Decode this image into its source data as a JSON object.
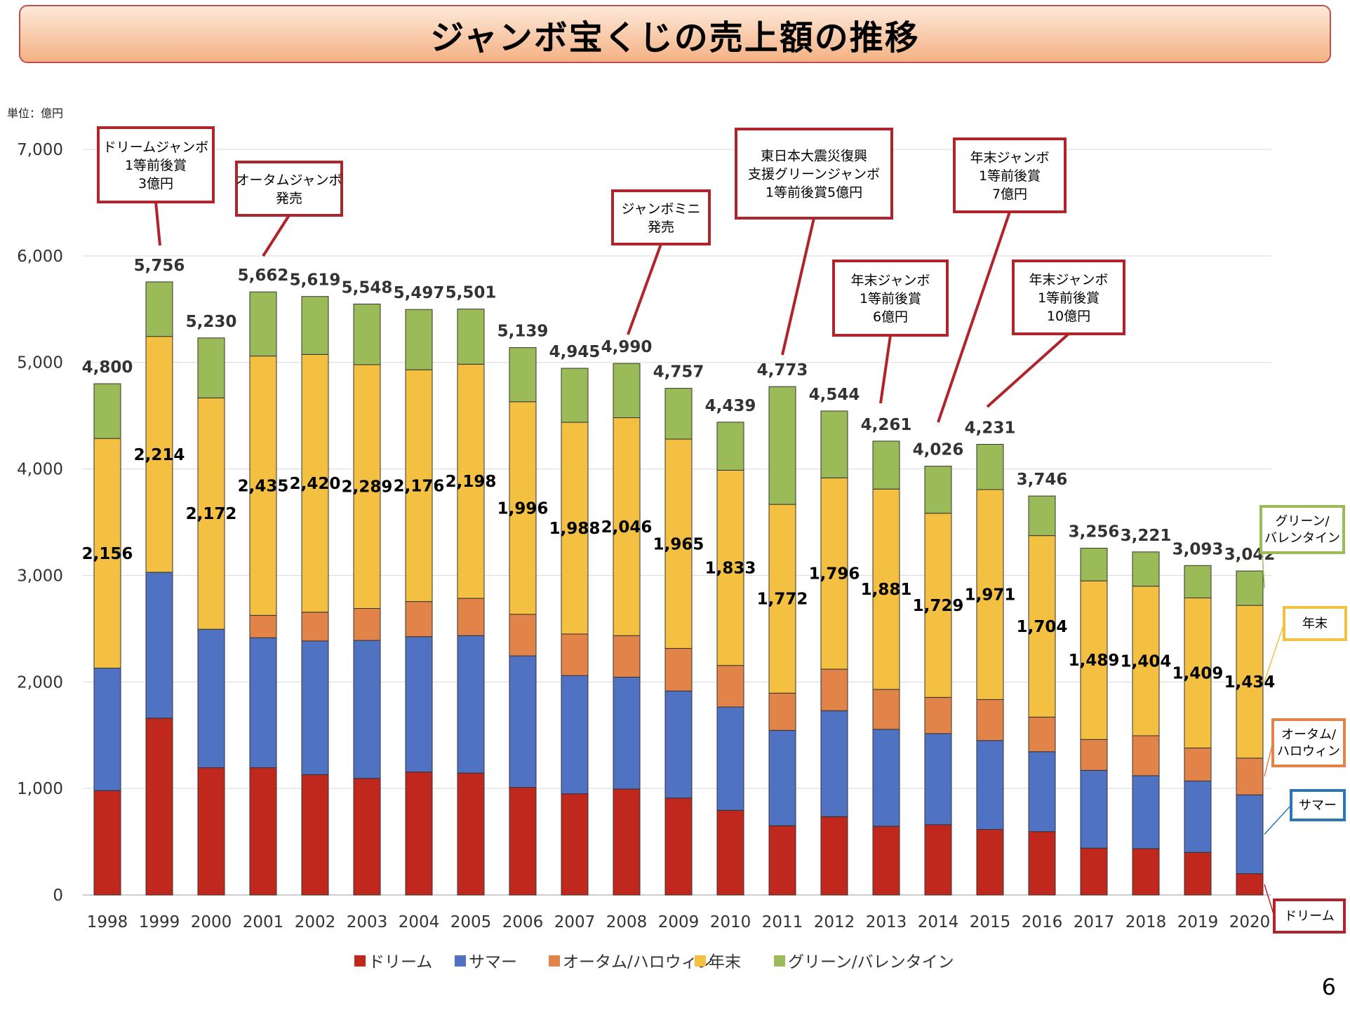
{
  "title": "ジャンボ宝くじの売上額の推移",
  "unit": "単位：億円",
  "page_number": "6",
  "chart_data": {
    "type": "bar",
    "stacked": true,
    "categories": [
      "1998",
      "1999",
      "2000",
      "2001",
      "2002",
      "2003",
      "2004",
      "2005",
      "2006",
      "2007",
      "2008",
      "2009",
      "2010",
      "2011",
      "2012",
      "2013",
      "2014",
      "2015",
      "2016",
      "2017",
      "2018",
      "2019",
      "2020"
    ],
    "ylim": [
      0,
      7000
    ],
    "yticks": [
      "0",
      "1,000",
      "2,000",
      "3,000",
      "4,000",
      "5,000",
      "6,000",
      "7,000"
    ],
    "ytick_values": [
      0,
      1000,
      2000,
      3000,
      4000,
      5000,
      6000,
      7000
    ],
    "grid": true,
    "legend_position": "bottom",
    "series": [
      {
        "name": "ドリーム",
        "color": "#c0281e",
        "values": [
          980,
          1660,
          1195,
          1195,
          1130,
          1095,
          1155,
          1145,
          1010,
          950,
          995,
          910,
          795,
          650,
          735,
          645,
          660,
          615,
          595,
          440,
          435,
          400,
          200
        ]
      },
      {
        "name": "サマー",
        "color": "#4f72c3",
        "values": [
          1150,
          1370,
          1300,
          1220,
          1255,
          1295,
          1270,
          1290,
          1235,
          1110,
          1050,
          1005,
          970,
          895,
          995,
          910,
          855,
          835,
          750,
          730,
          685,
          670,
          740
        ]
      },
      {
        "name": "オータム/ハロウィン",
        "color": "#e2834a",
        "values": [
          0,
          0,
          0,
          210,
          270,
          300,
          330,
          350,
          390,
          390,
          390,
          400,
          390,
          350,
          390,
          375,
          340,
          385,
          325,
          290,
          375,
          310,
          345
        ]
      },
      {
        "name": "年末",
        "color": "#f4c042",
        "values": [
          2156,
          2214,
          2172,
          2435,
          2420,
          2289,
          2176,
          2198,
          1996,
          1988,
          2046,
          1965,
          1833,
          1772,
          1796,
          1881,
          1729,
          1971,
          1704,
          1489,
          1404,
          1409,
          1434
        ]
      },
      {
        "name": "グリーン/バレンタイン",
        "color": "#9bbb59",
        "values": [
          514,
          512,
          563,
          602,
          544,
          569,
          566,
          518,
          508,
          507,
          509,
          477,
          451,
          1106,
          628,
          450,
          442,
          425,
          372,
          307,
          322,
          304,
          323
        ]
      }
    ],
    "totals": [
      4800,
      5756,
      5230,
      5662,
      5619,
      5548,
      5497,
      5501,
      5139,
      4945,
      4990,
      4757,
      4439,
      4773,
      4544,
      4261,
      4026,
      4231,
      3746,
      3256,
      3221,
      3093,
      3042
    ],
    "total_labels": [
      "4,800",
      "5,756",
      "5,230",
      "5,662",
      "5,619",
      "5,548",
      "5,497",
      "5,501",
      "5,139",
      "4,945",
      "4,990",
      "4,757",
      "4,439",
      "4,773",
      "4,544",
      "4,261",
      "4,026",
      "4,231",
      "3,746",
      "3,256",
      "3,221",
      "3,093",
      "3,042"
    ],
    "year_end_labels": [
      "2,156",
      "2,214",
      "2,172",
      "2,435",
      "2,420",
      "2,289",
      "2,176",
      "2,198",
      "1,996",
      "1,988",
      "2,046",
      "1,965",
      "1,833",
      "1,772",
      "1,796",
      "1,881",
      "1,729",
      "1,971",
      "1,704",
      "1,489",
      "1,404",
      "1,409",
      "1,434"
    ],
    "annotations": [
      {
        "lines": [
          "ドリームジャンボ",
          "1等前後賞",
          "3億円"
        ],
        "category": "1999"
      },
      {
        "lines": [
          "オータムジャンボ",
          "発売"
        ],
        "category": "2001"
      },
      {
        "lines": [
          "ジャンボミニ",
          "発売"
        ],
        "category": "2008"
      },
      {
        "lines": [
          "東日本大震災復興",
          "支援グリーンジャンボ",
          "1等前後賞5億円"
        ],
        "category": "2011"
      },
      {
        "lines": [
          "年末ジャンボ",
          "1等前後賞",
          "6億円"
        ],
        "category": "2013"
      },
      {
        "lines": [
          "年末ジャンボ",
          "1等前後賞",
          "7億円"
        ],
        "category": "2014"
      },
      {
        "lines": [
          "年末ジャンボ",
          "1等前後賞",
          "10億円"
        ],
        "category": "2015"
      }
    ],
    "side_labels": [
      {
        "lines": [
          "グリーン/",
          "バレンタイン"
        ],
        "series": "グリーン/バレンタイン",
        "color": "#9bbb59"
      },
      {
        "lines": [
          "年末"
        ],
        "series": "年末",
        "color": "#f4c042"
      },
      {
        "lines": [
          "オータム/",
          "ハロウィン"
        ],
        "series": "オータム/ハロウィン",
        "color": "#e2834a"
      },
      {
        "lines": [
          "サマー"
        ],
        "series": "サマー",
        "color": "#2e75b6"
      },
      {
        "lines": [
          "ドリーム"
        ],
        "series": "ドリーム",
        "color": "#b0252b"
      }
    ]
  }
}
